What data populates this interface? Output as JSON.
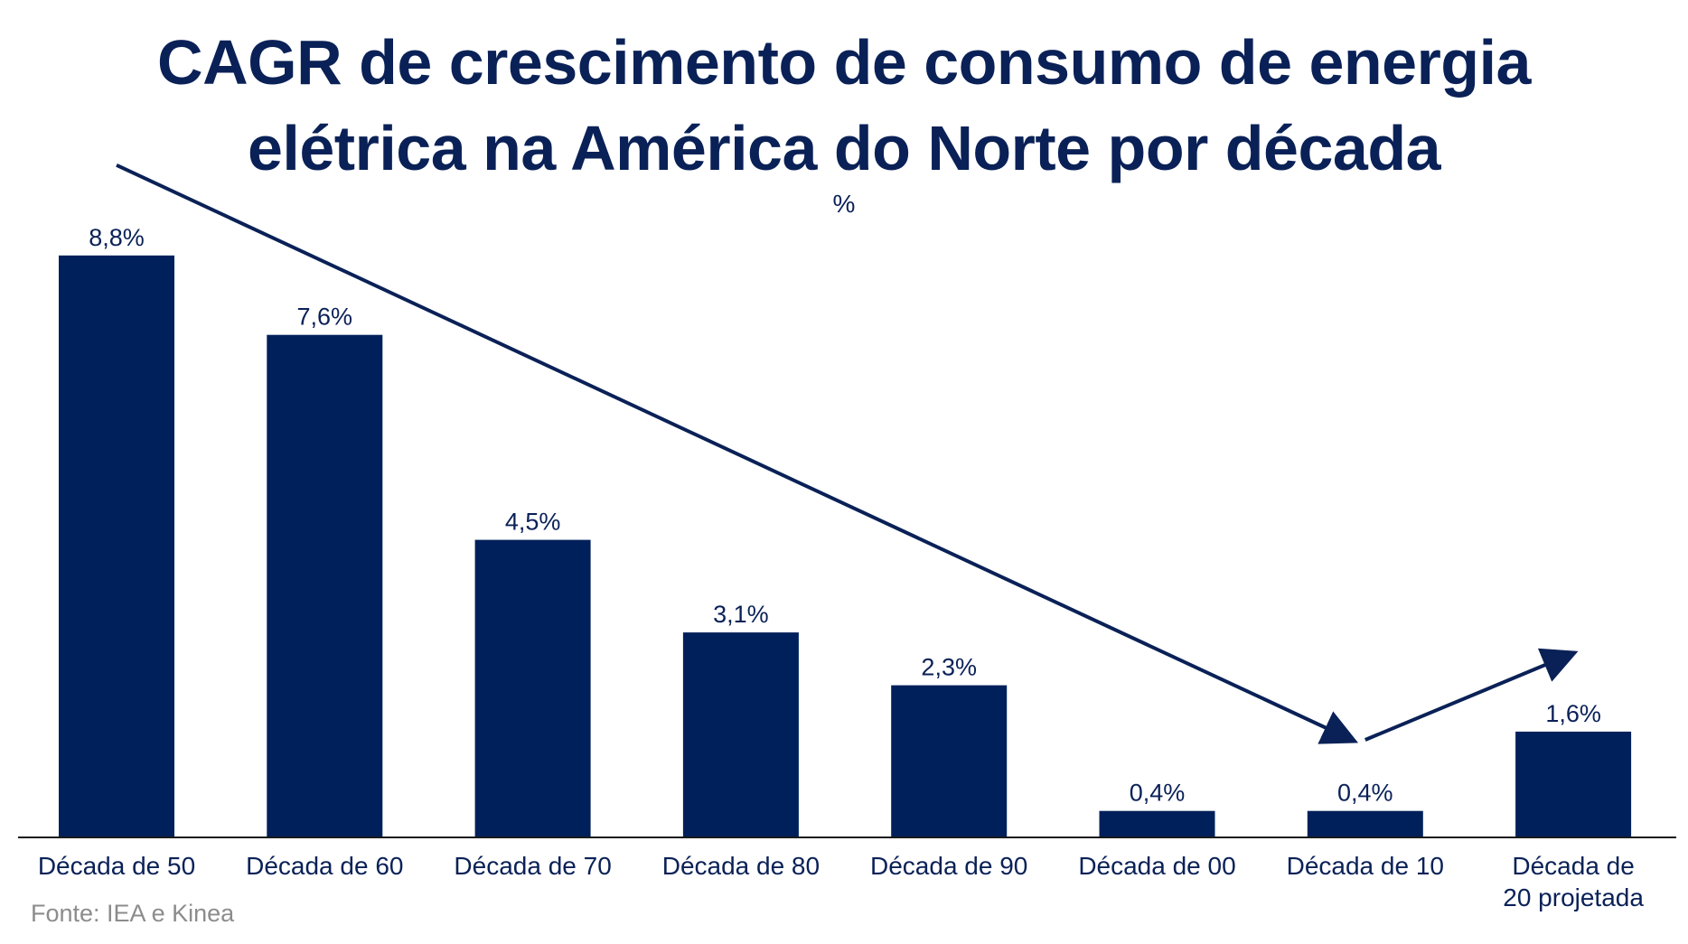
{
  "header": {
    "title_line1": "CAGR de crescimento de consumo de energia",
    "title_line2": "elétrica na América do Norte por década",
    "unit": "%"
  },
  "source": "Fonte: IEA e Kinea",
  "colors": {
    "bar": "#00205b",
    "text": "#0a2157",
    "source": "#8c8c8c"
  },
  "chart_data": {
    "type": "bar",
    "categories": [
      "Década de 50",
      "Década de 60",
      "Década de 70",
      "Década de 80",
      "Década de 90",
      "Década de 00",
      "Década de 10",
      "Década de\n20 projetada"
    ],
    "values": [
      8.8,
      7.6,
      4.5,
      3.1,
      2.3,
      0.4,
      0.4,
      1.6
    ],
    "data_labels": [
      "8,8%",
      "7,6%",
      "4,5%",
      "3,1%",
      "2,3%",
      "0,4%",
      "0,4%",
      "1,6%"
    ],
    "ylabel": "%",
    "ylim": [
      0,
      10
    ],
    "grid": false,
    "annotations": [
      "downward trend arrow from Década de 50 to Década de 10",
      "upward arrow from Década de 10 to Década de 20 projetada"
    ]
  }
}
